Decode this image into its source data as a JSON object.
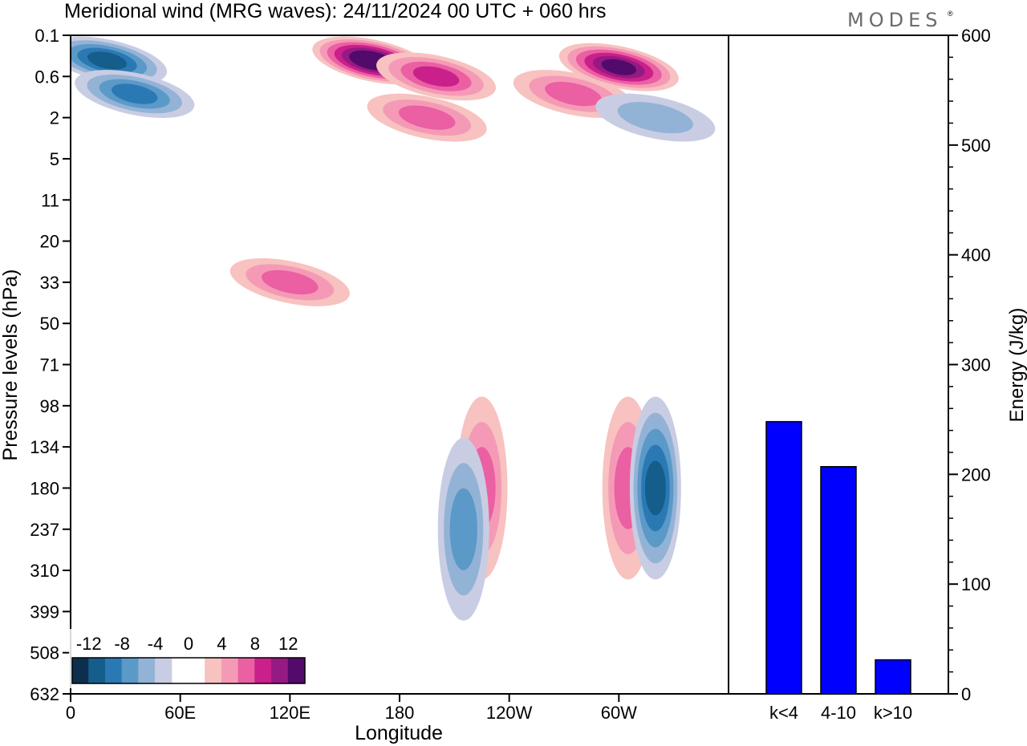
{
  "header": {
    "title": "Meridional wind (MRG waves):  24/11/2024  00 UTC  + 060 hrs",
    "brand": "MODES"
  },
  "colors": {
    "negative": [
      "#0d2f4e",
      "#155d8b",
      "#2b79b4",
      "#5b99c8",
      "#93b3d6",
      "#c9cde3"
    ],
    "positive": [
      "#f7c2c0",
      "#f59ab6",
      "#eb5fa3",
      "#c9208b",
      "#961a83",
      "#520b6a"
    ],
    "bar": "#0000ff"
  },
  "chart_data": [
    {
      "type": "heatmap",
      "title": "Meridional wind (MRG waves):  24/11/2024  00 UTC  + 060 hrs",
      "xlabel": "Longitude",
      "ylabel": "Pressure levels (hPa)",
      "x_ticks": [
        "0",
        "60E",
        "120E",
        "180",
        "120W",
        "60W"
      ],
      "y_ticks": [
        "0.1",
        "0.6",
        "2",
        "5",
        "11",
        "20",
        "33",
        "50",
        "71",
        "98",
        "134",
        "180",
        "237",
        "310",
        "399",
        "508",
        "632"
      ],
      "colorbar": {
        "levels": [
          "-12",
          "-8",
          "-4",
          "0",
          "4",
          "8",
          "12"
        ],
        "range": [
          -14,
          14
        ]
      },
      "features": [
        {
          "lon": 165,
          "level": "0.3",
          "value": 14
        },
        {
          "lon": 200,
          "level": "0.6",
          "value": 8
        },
        {
          "lon": 195,
          "level": "2",
          "value": 6
        },
        {
          "lon": 275,
          "level": "1",
          "value": 6
        },
        {
          "lon": 300,
          "level": "0.4",
          "value": 12
        },
        {
          "lon": 20,
          "level": "0.3",
          "value": -10
        },
        {
          "lon": 35,
          "level": "1",
          "value": -8
        },
        {
          "lon": 320,
          "level": "2",
          "value": -4
        },
        {
          "lon": 120,
          "level": "33",
          "value": 6
        },
        {
          "lon": 225,
          "level": "180",
          "value": 6
        },
        {
          "lon": 305,
          "level": "180",
          "value": 6
        },
        {
          "lon": 320,
          "level": "180",
          "value": -10
        },
        {
          "lon": 215,
          "level": "237",
          "value": -6
        }
      ]
    },
    {
      "type": "bar",
      "ylabel": "Energy (J/kg)",
      "categories": [
        "k<4",
        "4-10",
        "k>10"
      ],
      "values": [
        248,
        207,
        31
      ],
      "ylim": [
        0,
        600
      ],
      "y_ticks": [
        "0",
        "100",
        "200",
        "300",
        "400",
        "500",
        "600"
      ]
    }
  ]
}
